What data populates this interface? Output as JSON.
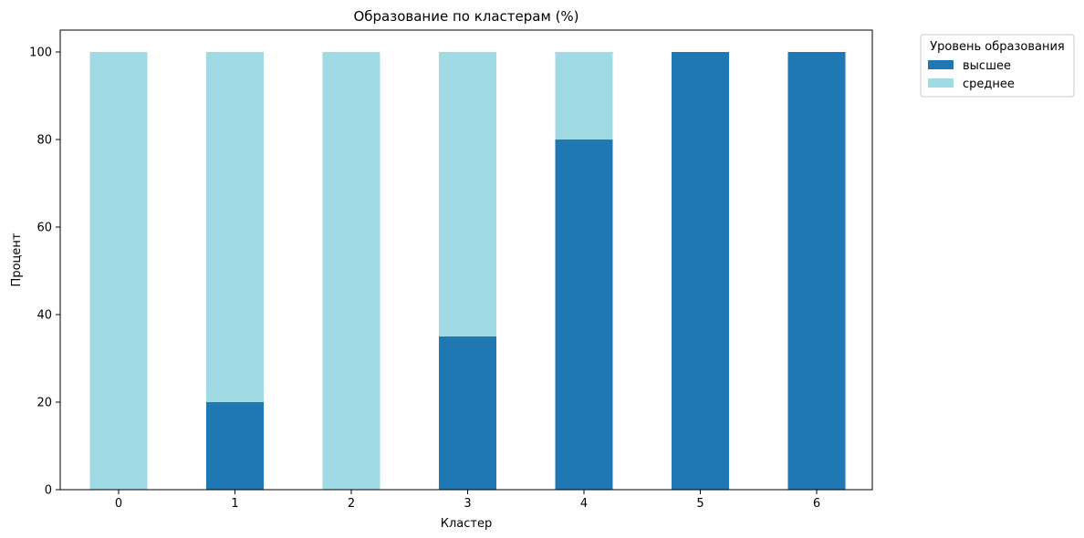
{
  "chart_data": {
    "type": "bar",
    "stacked": true,
    "title": "Образование по кластерам (%)",
    "xlabel": "Кластер",
    "ylabel": "Процент",
    "categories": [
      "0",
      "1",
      "2",
      "3",
      "4",
      "5",
      "6"
    ],
    "series": [
      {
        "name": "высшее",
        "color": "#1f77b4",
        "values": [
          0,
          20,
          0,
          35,
          80,
          100,
          100
        ]
      },
      {
        "name": "среднее",
        "color": "#9fdae5",
        "values": [
          100,
          80,
          100,
          65,
          20,
          0,
          0
        ]
      }
    ],
    "ylim": [
      0,
      105
    ],
    "yticks": [
      0,
      20,
      40,
      60,
      80,
      100
    ],
    "grid": false,
    "legend": {
      "title": "Уровень образования",
      "placement": "outside-top-right"
    }
  }
}
